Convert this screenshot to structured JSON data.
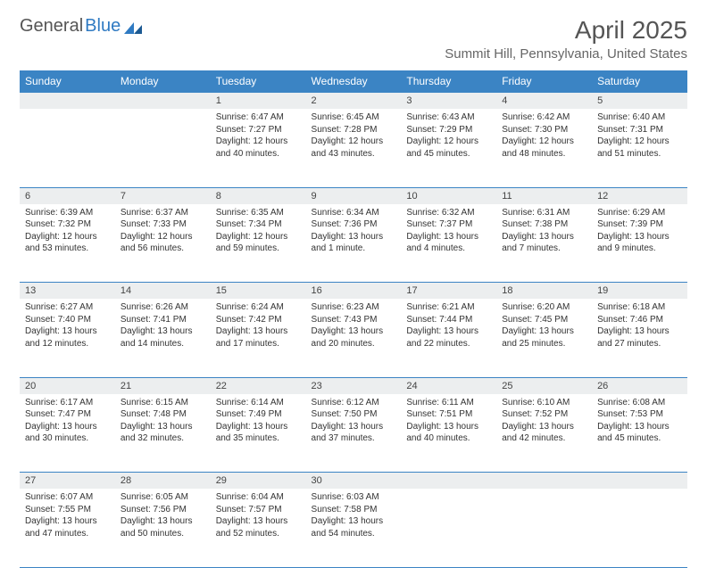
{
  "logo": {
    "text1": "General",
    "text2": "Blue"
  },
  "title": "April 2025",
  "location": "Summit Hill, Pennsylvania, United States",
  "colors": {
    "header_bg": "#3b84c4",
    "header_text": "#ffffff",
    "daynum_bg": "#eceeef",
    "border": "#3b84c4",
    "text": "#333333",
    "accent": "#2f7ac2"
  },
  "day_labels": [
    "Sunday",
    "Monday",
    "Tuesday",
    "Wednesday",
    "Thursday",
    "Friday",
    "Saturday"
  ],
  "weeks": [
    [
      null,
      null,
      {
        "n": "1",
        "sr": "6:47 AM",
        "ss": "7:27 PM",
        "dl": "12 hours and 40 minutes."
      },
      {
        "n": "2",
        "sr": "6:45 AM",
        "ss": "7:28 PM",
        "dl": "12 hours and 43 minutes."
      },
      {
        "n": "3",
        "sr": "6:43 AM",
        "ss": "7:29 PM",
        "dl": "12 hours and 45 minutes."
      },
      {
        "n": "4",
        "sr": "6:42 AM",
        "ss": "7:30 PM",
        "dl": "12 hours and 48 minutes."
      },
      {
        "n": "5",
        "sr": "6:40 AM",
        "ss": "7:31 PM",
        "dl": "12 hours and 51 minutes."
      }
    ],
    [
      {
        "n": "6",
        "sr": "6:39 AM",
        "ss": "7:32 PM",
        "dl": "12 hours and 53 minutes."
      },
      {
        "n": "7",
        "sr": "6:37 AM",
        "ss": "7:33 PM",
        "dl": "12 hours and 56 minutes."
      },
      {
        "n": "8",
        "sr": "6:35 AM",
        "ss": "7:34 PM",
        "dl": "12 hours and 59 minutes."
      },
      {
        "n": "9",
        "sr": "6:34 AM",
        "ss": "7:36 PM",
        "dl": "13 hours and 1 minute."
      },
      {
        "n": "10",
        "sr": "6:32 AM",
        "ss": "7:37 PM",
        "dl": "13 hours and 4 minutes."
      },
      {
        "n": "11",
        "sr": "6:31 AM",
        "ss": "7:38 PM",
        "dl": "13 hours and 7 minutes."
      },
      {
        "n": "12",
        "sr": "6:29 AM",
        "ss": "7:39 PM",
        "dl": "13 hours and 9 minutes."
      }
    ],
    [
      {
        "n": "13",
        "sr": "6:27 AM",
        "ss": "7:40 PM",
        "dl": "13 hours and 12 minutes."
      },
      {
        "n": "14",
        "sr": "6:26 AM",
        "ss": "7:41 PM",
        "dl": "13 hours and 14 minutes."
      },
      {
        "n": "15",
        "sr": "6:24 AM",
        "ss": "7:42 PM",
        "dl": "13 hours and 17 minutes."
      },
      {
        "n": "16",
        "sr": "6:23 AM",
        "ss": "7:43 PM",
        "dl": "13 hours and 20 minutes."
      },
      {
        "n": "17",
        "sr": "6:21 AM",
        "ss": "7:44 PM",
        "dl": "13 hours and 22 minutes."
      },
      {
        "n": "18",
        "sr": "6:20 AM",
        "ss": "7:45 PM",
        "dl": "13 hours and 25 minutes."
      },
      {
        "n": "19",
        "sr": "6:18 AM",
        "ss": "7:46 PM",
        "dl": "13 hours and 27 minutes."
      }
    ],
    [
      {
        "n": "20",
        "sr": "6:17 AM",
        "ss": "7:47 PM",
        "dl": "13 hours and 30 minutes."
      },
      {
        "n": "21",
        "sr": "6:15 AM",
        "ss": "7:48 PM",
        "dl": "13 hours and 32 minutes."
      },
      {
        "n": "22",
        "sr": "6:14 AM",
        "ss": "7:49 PM",
        "dl": "13 hours and 35 minutes."
      },
      {
        "n": "23",
        "sr": "6:12 AM",
        "ss": "7:50 PM",
        "dl": "13 hours and 37 minutes."
      },
      {
        "n": "24",
        "sr": "6:11 AM",
        "ss": "7:51 PM",
        "dl": "13 hours and 40 minutes."
      },
      {
        "n": "25",
        "sr": "6:10 AM",
        "ss": "7:52 PM",
        "dl": "13 hours and 42 minutes."
      },
      {
        "n": "26",
        "sr": "6:08 AM",
        "ss": "7:53 PM",
        "dl": "13 hours and 45 minutes."
      }
    ],
    [
      {
        "n": "27",
        "sr": "6:07 AM",
        "ss": "7:55 PM",
        "dl": "13 hours and 47 minutes."
      },
      {
        "n": "28",
        "sr": "6:05 AM",
        "ss": "7:56 PM",
        "dl": "13 hours and 50 minutes."
      },
      {
        "n": "29",
        "sr": "6:04 AM",
        "ss": "7:57 PM",
        "dl": "13 hours and 52 minutes."
      },
      {
        "n": "30",
        "sr": "6:03 AM",
        "ss": "7:58 PM",
        "dl": "13 hours and 54 minutes."
      },
      null,
      null,
      null
    ]
  ],
  "labels": {
    "sunrise": "Sunrise:",
    "sunset": "Sunset:",
    "daylight": "Daylight:"
  }
}
